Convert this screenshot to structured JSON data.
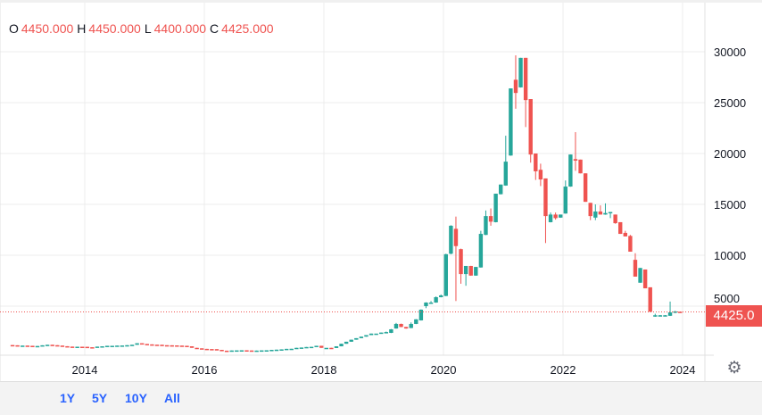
{
  "legend": {
    "o_label": "O",
    "o": "4450.000",
    "h_label": "H",
    "h": "4450.000",
    "l_label": "L",
    "l": "4400.000",
    "c_label": "C",
    "c": "4425.000"
  },
  "last_price_label": "4425.0",
  "settings_icon": "gear-icon",
  "ranges": [
    "1Y",
    "5Y",
    "10Y",
    "All"
  ],
  "colors": {
    "up": "#26a69a",
    "down": "#ef5350",
    "range_button": "#2962ff",
    "grid": "#ececec"
  },
  "chart_data": {
    "type": "candlestick",
    "interval": "monthly",
    "ylim": [
      0,
      32000
    ],
    "y_ticks": [
      5000,
      10000,
      15000,
      20000,
      25000,
      30000
    ],
    "x_ticks": [
      "2014",
      "2016",
      "2018",
      "2020",
      "2022",
      "2024"
    ],
    "last_price": 4425,
    "early_closes_start": "2012-10",
    "early_closes": [
      1150,
      1100,
      1120,
      1100,
      1050,
      1080,
      1150,
      1200,
      1160,
      1120,
      1060,
      1020,
      1000,
      1010,
      1000,
      960,
      950,
      1020,
      1050,
      1100,
      1100,
      1120,
      1130,
      1160,
      1200,
      1350,
      1280,
      1240,
      1210,
      1200,
      1160,
      1150,
      1140,
      1120,
      1100,
      1050,
      900,
      850,
      800,
      780,
      770,
      700,
      620,
      600,
      640,
      650,
      660,
      640,
      600,
      630,
      650,
      660,
      700,
      720,
      750,
      800,
      810,
      900,
      930,
      980,
      1000,
      1100,
      900,
      900,
      880,
      1050,
      1300,
      1500,
      1700,
      1850,
      2000,
      2150,
      2300,
      2300,
      2400
    ],
    "ohlc_start": "2019-01",
    "ohlc": [
      [
        2400,
        2500,
        2380,
        2450
      ],
      [
        2370,
        2750,
        2350,
        2720
      ],
      [
        2800,
        3350,
        2780,
        3250
      ],
      [
        3250,
        3280,
        2930,
        2950
      ],
      [
        2950,
        2970,
        2780,
        2800
      ],
      [
        2850,
        3400,
        2830,
        3250
      ],
      [
        3250,
        3720,
        3230,
        3700
      ],
      [
        3600,
        4680,
        3580,
        4650
      ],
      [
        5000,
        5380,
        4800,
        5350
      ],
      [
        5350,
        5500,
        5250,
        5350
      ],
      [
        5350,
        5950,
        5330,
        5880
      ],
      [
        5880,
        6150,
        5860,
        6050
      ],
      [
        6000,
        10150,
        5980,
        10100
      ],
      [
        10150,
        12950,
        10100,
        12900
      ],
      [
        12600,
        13800,
        5500,
        10900
      ],
      [
        10600,
        10650,
        7200,
        8150
      ],
      [
        8150,
        8950,
        7000,
        8950
      ],
      [
        8950,
        8960,
        7980,
        8000
      ],
      [
        8000,
        8860,
        7980,
        8850
      ],
      [
        8800,
        12400,
        8780,
        12100
      ],
      [
        12000,
        14400,
        11980,
        13850
      ],
      [
        13850,
        14600,
        12900,
        13300
      ],
      [
        13250,
        16050,
        13230,
        16050
      ],
      [
        16000,
        16950,
        15980,
        16950
      ],
      [
        16850,
        21750,
        16830,
        19200
      ],
      [
        19800,
        26400,
        19780,
        26400
      ],
      [
        27250,
        29650,
        24400,
        25950
      ],
      [
        26500,
        29400,
        26480,
        29400
      ],
      [
        29400,
        29400,
        22600,
        25250
      ],
      [
        25350,
        25350,
        19100,
        19900
      ],
      [
        20000,
        20000,
        17400,
        18250
      ],
      [
        18400,
        19000,
        16800,
        17450
      ],
      [
        17550,
        17550,
        11200,
        13850
      ],
      [
        13250,
        14200,
        13230,
        14000
      ],
      [
        14000,
        14200,
        13500,
        13650
      ],
      [
        13700,
        14000,
        13680,
        14000
      ],
      [
        14100,
        17350,
        14080,
        16750
      ],
      [
        16750,
        19900,
        16730,
        19900
      ],
      [
        19450,
        22100,
        18300,
        19300
      ],
      [
        19400,
        19400,
        18050,
        18050
      ],
      [
        18050,
        18050,
        15250,
        15250
      ],
      [
        15150,
        15150,
        13450,
        13850
      ],
      [
        13700,
        15000,
        13450,
        14300
      ],
      [
        14300,
        14900,
        14000,
        14000
      ],
      [
        14000,
        15100,
        13980,
        14150
      ],
      [
        14150,
        14260,
        13650,
        14250
      ],
      [
        14000,
        14000,
        13100,
        13150
      ],
      [
        13250,
        13250,
        12100,
        12100
      ],
      [
        12200,
        12400,
        11850,
        11850
      ],
      [
        11900,
        12000,
        10350,
        10350
      ],
      [
        9550,
        10200,
        7900,
        7900
      ],
      [
        7300,
        8750,
        7300,
        8750
      ],
      [
        8600,
        8600,
        6750,
        6750
      ],
      [
        6850,
        6850,
        4450,
        4450
      ],
      [
        4100,
        4250,
        3950,
        4100
      ],
      [
        4100,
        4120,
        4080,
        4100
      ],
      [
        4100,
        4120,
        4080,
        4100
      ],
      [
        4050,
        5450,
        4030,
        4380
      ],
      [
        4400,
        4530,
        4300,
        4480
      ],
      [
        4450,
        4450,
        4400,
        4425
      ]
    ]
  }
}
